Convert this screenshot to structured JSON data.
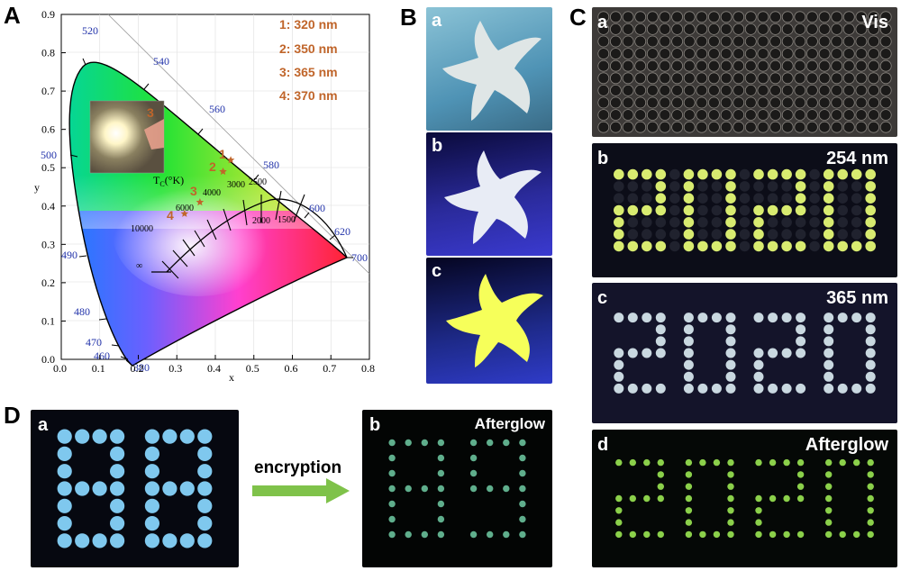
{
  "panels": {
    "A": {
      "letter": "A"
    },
    "B": {
      "letter": "B",
      "sub": [
        "a",
        "b",
        "c"
      ]
    },
    "C": {
      "letter": "C",
      "sub": [
        "a",
        "b",
        "c",
        "d"
      ],
      "labels": [
        "Vis",
        "254 nm",
        "365 nm",
        "Afterglow"
      ]
    },
    "D": {
      "letter": "D",
      "sub": [
        "a",
        "b"
      ],
      "label_b": "Afterglow",
      "arrow_text": "encryption"
    }
  },
  "cie": {
    "legend": [
      "1: 320 nm",
      "2: 350 nm",
      "3: 365 nm",
      "4: 370 nm"
    ],
    "inset_label": "3",
    "tc_label": "T",
    "tc_sub": "C",
    "tc_unit": "(°K)",
    "xlabel": "x",
    "ylabel": "y",
    "x_ticks": [
      "0.0",
      "0.1",
      "0.2",
      "0.3",
      "0.4",
      "0.5",
      "0.6",
      "0.7",
      "0.8"
    ],
    "y_ticks": [
      "0.0",
      "0.1",
      "0.2",
      "0.3",
      "0.4",
      "0.5",
      "0.6",
      "0.7",
      "0.8",
      "0.9"
    ],
    "wavelength_labels": [
      "380",
      "460",
      "470",
      "480",
      "490",
      "500",
      "520",
      "540",
      "560",
      "580",
      "600",
      "620",
      "700"
    ],
    "tc_values": [
      "10000",
      "6000",
      "4000",
      "3000",
      "2500",
      "2000",
      "1500",
      "∞"
    ],
    "point_labels": [
      "1",
      "2",
      "3",
      "4"
    ]
  },
  "chart_data": {
    "type": "scatter",
    "title": "",
    "xlabel": "x",
    "ylabel": "y",
    "xlim": [
      0.0,
      0.8
    ],
    "ylim": [
      0.0,
      0.9
    ],
    "series": [
      {
        "name": "1: 320 nm",
        "x": [
          0.44
        ],
        "y": [
          0.52
        ]
      },
      {
        "name": "2: 350 nm",
        "x": [
          0.42
        ],
        "y": [
          0.49
        ]
      },
      {
        "name": "3: 365 nm",
        "x": [
          0.36
        ],
        "y": [
          0.41
        ]
      },
      {
        "name": "4: 370 nm",
        "x": [
          0.32
        ],
        "y": [
          0.38
        ]
      }
    ]
  },
  "colors": {
    "legend_text": "#c0652a",
    "wavelength_text": "#2233aa",
    "arrow": "#7fc24a",
    "photo_dark": "#0a0c14"
  }
}
